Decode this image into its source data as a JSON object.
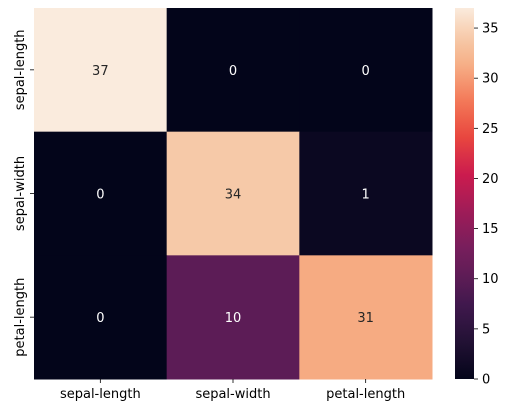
{
  "chart_data": {
    "type": "heatmap",
    "title": "",
    "xlabel": "",
    "ylabel": "",
    "x_categories": [
      "sepal-length",
      "sepal-width",
      "petal-length"
    ],
    "y_categories": [
      "sepal-length",
      "sepal-width",
      "petal-length"
    ],
    "values": [
      [
        37,
        0,
        0
      ],
      [
        0,
        34,
        1
      ],
      [
        0,
        10,
        31
      ]
    ],
    "colorbar": {
      "range": [
        0,
        37
      ],
      "ticks": [
        0,
        5,
        10,
        15,
        20,
        25,
        30,
        35
      ],
      "colormap": "rocket"
    },
    "annotated": true,
    "grid": false
  }
}
